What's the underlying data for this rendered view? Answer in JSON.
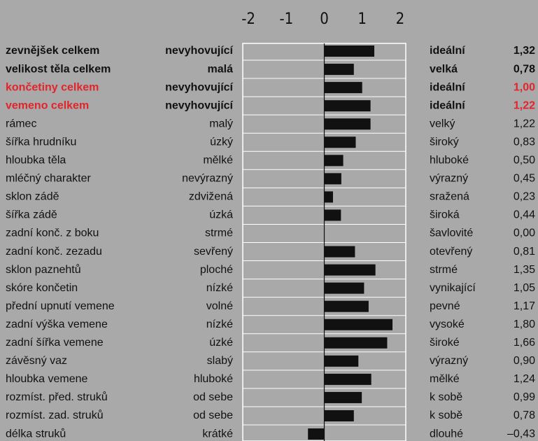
{
  "chart_data": {
    "type": "bar",
    "orientation": "horizontal",
    "categories": [
      "zevnějšek celkem",
      "velikost těla celkem",
      "končetiny celkem",
      "vemeno celkem",
      "rámec",
      "šířka hrudníku",
      "hloubka těla",
      "mléčný charakter",
      "sklon zádě",
      "šířka zádě",
      "zadní konč. z boku",
      "zadní konč. zezadu",
      "sklon paznehtů",
      "skóre končetin",
      "přední upnutí vemene",
      "zadní výška vemene",
      "zadní šířka vemene",
      "závěsný vaz",
      "hloubka vemene",
      "rozmíst. před. struků",
      "rozmíst. zad. struků",
      "délka struků"
    ],
    "low_labels": [
      "nevyhovující",
      "malá",
      "nevyhovující",
      "nevyhovující",
      "malý",
      "úzký",
      "mělké",
      "nevýrazný",
      "zdvižená",
      "úzká",
      "strmé",
      "sevřený",
      "ploché",
      "nízké",
      "volné",
      "nízké",
      "úzké",
      "slabý",
      "hluboké",
      "od sebe",
      "od sebe",
      "krátké"
    ],
    "high_labels": [
      "ideální",
      "velká",
      "ideální",
      "ideální",
      "velký",
      "široký",
      "hluboké",
      "výrazný",
      "sražená",
      "široká",
      "šavlovité",
      "otevřený",
      "strmé",
      "vynikající",
      "pevné",
      "vysoké",
      "široké",
      "výrazný",
      "mělké",
      "k sobě",
      "k sobě",
      "dlouhé"
    ],
    "values": [
      1.32,
      0.78,
      1.0,
      1.22,
      1.22,
      0.83,
      0.5,
      0.45,
      0.23,
      0.44,
      0.0,
      0.81,
      1.35,
      1.05,
      1.17,
      1.8,
      1.66,
      0.9,
      1.24,
      0.99,
      0.78,
      -0.43
    ],
    "value_labels": [
      "1,32",
      "0,78",
      "1,00",
      "1,22",
      "1,22",
      "0,83",
      "0,50",
      "0,45",
      "0,23",
      "0,44",
      "0,00",
      "0,81",
      "1,35",
      "1,05",
      "1,17",
      "1,80",
      "1,66",
      "0,90",
      "1,24",
      "0,99",
      "0,78",
      "–0,43"
    ],
    "color": "#111111",
    "bold_rows": [
      0,
      1,
      2,
      3
    ],
    "highlight_rows": [
      2,
      3
    ],
    "highlight_color": "#e3242b",
    "xlim": [
      -2.15,
      2.15
    ],
    "xticks": [
      -2,
      -1,
      0,
      1,
      2
    ],
    "grid": true
  }
}
